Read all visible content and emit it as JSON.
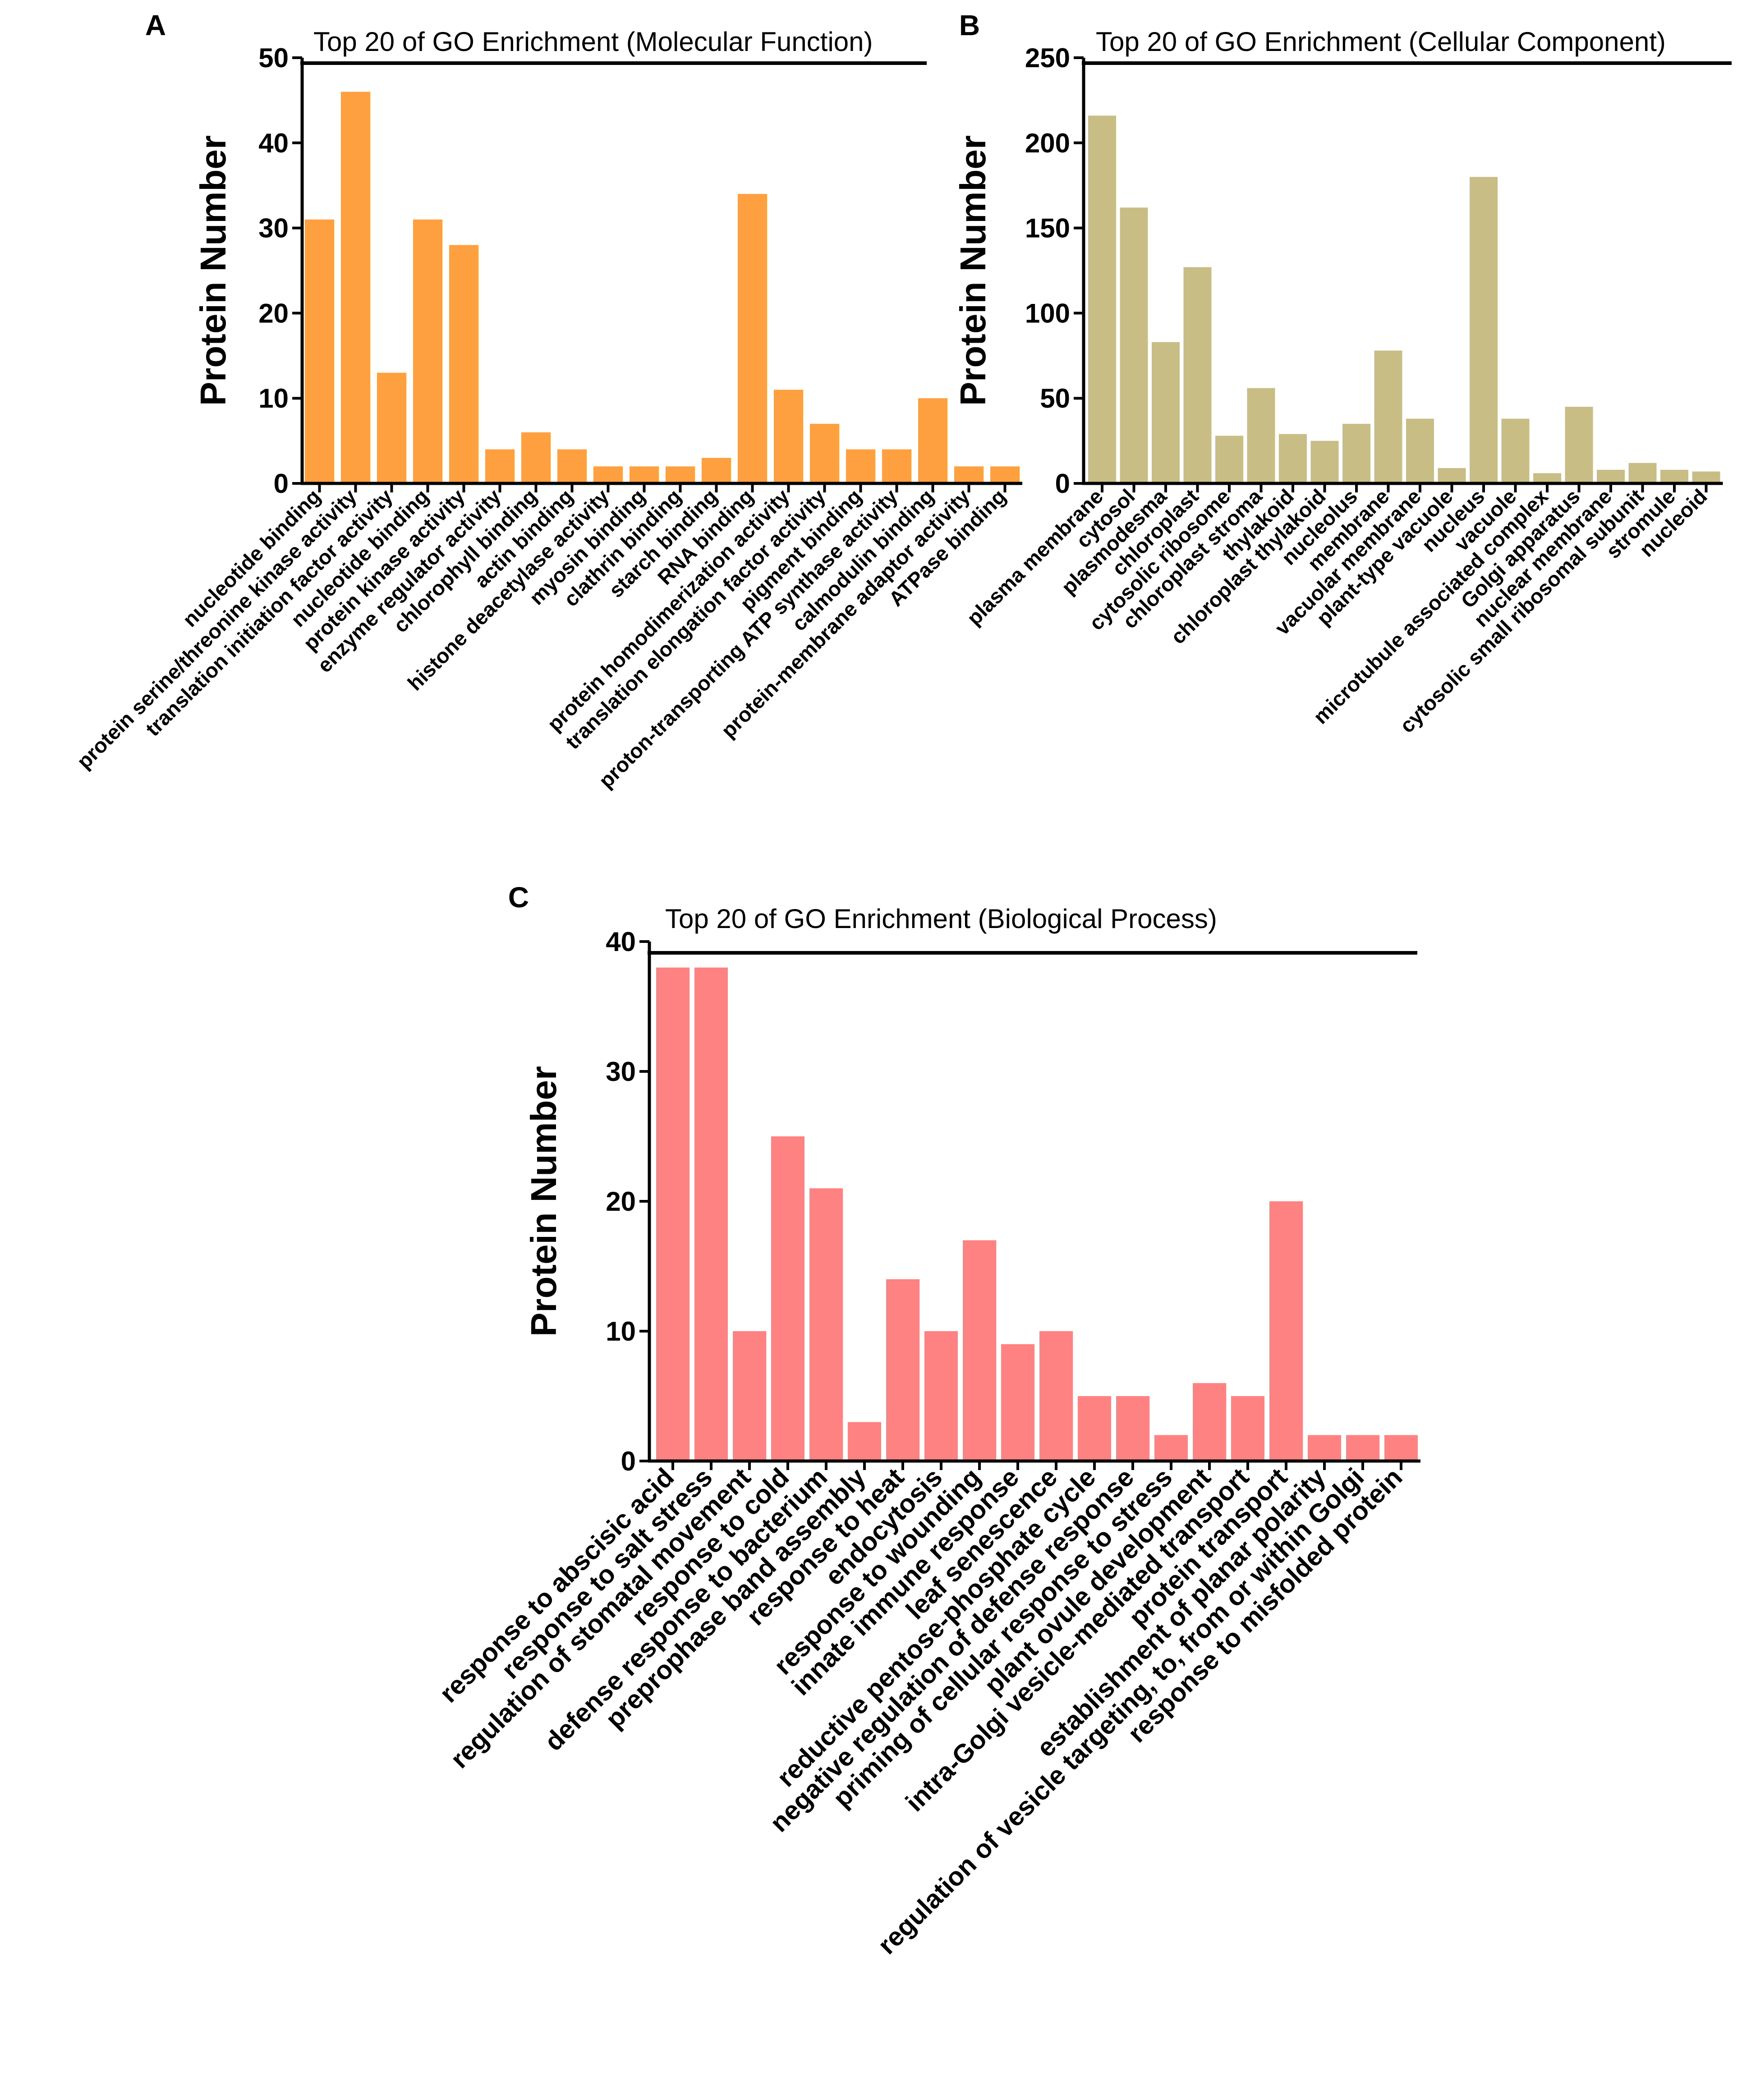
{
  "figure": {
    "panel_labels": [
      "A",
      "B",
      "C"
    ]
  },
  "chart_data": [
    {
      "type": "bar",
      "panel": "A",
      "title": "Top 20 of GO Enrichment (Molecular Function)",
      "xlabel": "",
      "ylabel": "Protein Number",
      "ylim": [
        0,
        50
      ],
      "yticks": [
        0,
        10,
        20,
        30,
        40,
        50
      ],
      "color": "#FFA040",
      "categories": [
        "nucleotide binding",
        "protein serine/threonine kinase activity",
        "translation initiation factor activity",
        "nucleotide binding",
        "protein kinase activity",
        "enzyme regulator activity",
        "chlorophyll binding",
        "actin binding",
        "histone deacetylase activity",
        "myosin binding",
        "clathrin binding",
        "starch binding",
        "RNA binding",
        "protein homodimerization activity",
        "translation elongation factor activity",
        "pigment binding",
        "proton-transporting ATP synthase activity",
        "calmodulin binding",
        "protein-membrane adaptor activity",
        "ATPase binding"
      ],
      "values": [
        31,
        46,
        13,
        31,
        28,
        4,
        6,
        4,
        2,
        2,
        2,
        3,
        34,
        11,
        7,
        4,
        4,
        10,
        2,
        2
      ]
    },
    {
      "type": "bar",
      "panel": "B",
      "title": "Top 20 of GO Enrichment (Cellular Component)",
      "xlabel": "",
      "ylabel": "Protein Number",
      "ylim": [
        0,
        250
      ],
      "yticks": [
        0,
        50,
        100,
        150,
        200,
        250
      ],
      "color": "#C8BD85",
      "categories": [
        "plasma membrane",
        "cytosol",
        "plasmodesma",
        "chloroplast",
        "cytosolic ribosome",
        "chloroplast stroma",
        "thylakoid",
        "chloroplast thylakoid",
        "nucleolus",
        "membrane",
        "vacuolar membrane",
        "plant-type vacuole",
        "nucleus",
        "vacuole",
        "microtubule associated complex",
        "Golgi apparatus",
        "nuclear membrane",
        "cytosolic small ribosomal subunit",
        "stromule",
        "nucleoid"
      ],
      "values": [
        216,
        162,
        83,
        127,
        28,
        56,
        29,
        25,
        35,
        78,
        38,
        9,
        180,
        38,
        6,
        45,
        8,
        12,
        8,
        7
      ]
    },
    {
      "type": "bar",
      "panel": "C",
      "title": "Top 20 of GO Enrichment (Biological Process)",
      "xlabel": "",
      "ylabel": "Protein Number",
      "ylim": [
        0,
        40
      ],
      "yticks": [
        0,
        10,
        20,
        30,
        40
      ],
      "color": "#FF8282",
      "categories": [
        "response to abscisic acid",
        "response to salt stress",
        "regulation of stomatal movement",
        "response to cold",
        "defense response to bacterium",
        "preprophase band assembly",
        "response to heat",
        "endocytosis",
        "response to wounding",
        "innate immune response",
        "leaf senescence",
        "reductive pentose-phosphate cycle",
        "negative regulation of defense response",
        "priming of cellular response to stress",
        "plant ovule development",
        "intra-Golgi vesicle-mediated transport",
        "protein transport",
        "establishment of planar polarity",
        "regulation of vesicle targeting, to, from or within Golgi",
        "response to misfolded protein"
      ],
      "values": [
        38,
        38,
        10,
        25,
        21,
        3,
        14,
        10,
        17,
        9,
        10,
        5,
        5,
        2,
        6,
        5,
        20,
        2,
        2,
        2
      ]
    }
  ]
}
